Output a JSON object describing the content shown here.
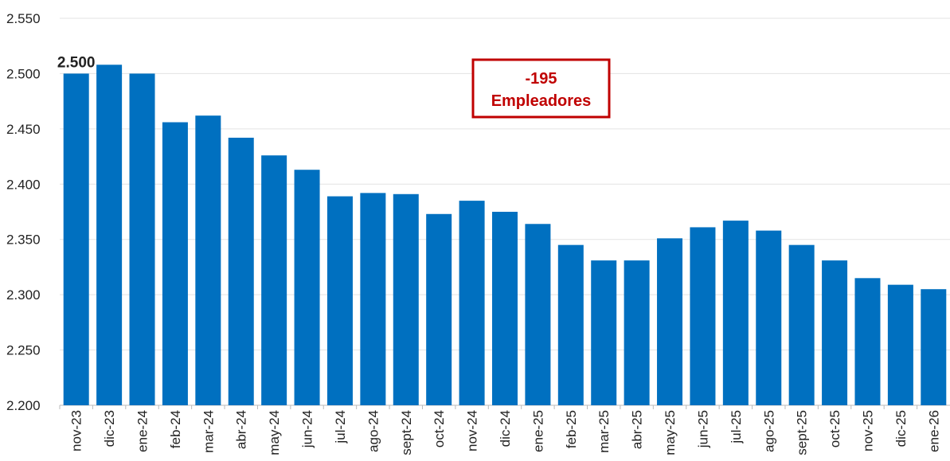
{
  "chart_data": {
    "type": "bar",
    "categories": [
      "nov-23",
      "dic-23",
      "ene-24",
      "feb-24",
      "mar-24",
      "abr-24",
      "may-24",
      "jun-24",
      "jul-24",
      "ago-24",
      "sept-24",
      "oct-24",
      "nov-24",
      "dic-24",
      "ene-25",
      "feb-25",
      "mar-25",
      "abr-25",
      "may-25",
      "jun-25",
      "jul-25",
      "ago-25",
      "sept-25",
      "oct-25",
      "nov-25",
      "dic-25",
      "ene-26"
    ],
    "values": [
      2500,
      2508,
      2500,
      2456,
      2462,
      2442,
      2426,
      2413,
      2389,
      2392,
      2391,
      2373,
      2385,
      2375,
      2364,
      2345,
      2331,
      2331,
      2351,
      2361,
      2367,
      2358,
      2345,
      2331,
      2315,
      2309,
      2305
    ],
    "ylim": [
      2200,
      2550
    ],
    "yticks": [
      2200,
      2250,
      2300,
      2350,
      2400,
      2450,
      2500,
      2550
    ],
    "ytick_labels": [
      "2.200",
      "2.250",
      "2.300",
      "2.350",
      "2.400",
      "2.450",
      "2.500",
      "2.550"
    ],
    "grid": true,
    "bar_color": "#0070C0",
    "data_labels": [
      {
        "index": 0,
        "text": "2.500"
      }
    ],
    "annotation": {
      "line1": "-195",
      "line2": "Empleadores",
      "color": "#C00000"
    },
    "title": "",
    "xlabel": "",
    "ylabel": ""
  }
}
